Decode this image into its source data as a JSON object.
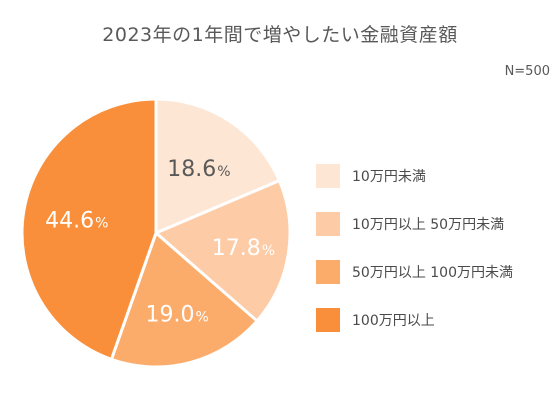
{
  "title": "2023年の1年間で増やしたい金融資産額",
  "sample_size": "N=500",
  "chart_data": {
    "type": "pie",
    "title": "2023年の1年間で増やしたい金融資産額",
    "start_angle_deg": 0,
    "direction": "clockwise",
    "slices": [
      {
        "label": "10万円未満",
        "value": 18.6,
        "display_number": "18.6",
        "display_unit": "%",
        "color": "#FDE6D4",
        "text_color": "#595959"
      },
      {
        "label": "10万円以上 50万円未満",
        "value": 17.8,
        "display_number": "17.8",
        "display_unit": "%",
        "color": "#FDCBA6",
        "text_color": "#ffffff"
      },
      {
        "label": "50万円以上 100万円未満",
        "value": 19.0,
        "display_number": "19.0",
        "display_unit": "%",
        "color": "#FBAB6A",
        "text_color": "#ffffff"
      },
      {
        "label": "100万円以上",
        "value": 44.6,
        "display_number": "44.6",
        "display_unit": "%",
        "color": "#F98F3A",
        "text_color": "#ffffff"
      }
    ],
    "legend_position": "right"
  }
}
